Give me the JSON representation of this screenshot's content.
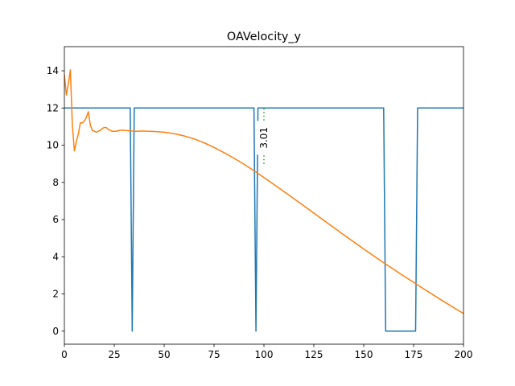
{
  "chart_data": {
    "type": "line",
    "title": "OAVelocity_y",
    "xlabel": "",
    "ylabel": "",
    "xlim": [
      0,
      200
    ],
    "ylim": [
      -0.7,
      15.3
    ],
    "xticks": [
      0,
      25,
      50,
      75,
      100,
      125,
      150,
      175,
      200
    ],
    "yticks": [
      0,
      2,
      4,
      6,
      8,
      10,
      12,
      14
    ],
    "grid": false,
    "legend": false,
    "series": [
      {
        "color": "#1f77b4",
        "x": [
          0,
          33,
          34,
          35,
          95,
          96,
          97,
          160,
          161,
          176,
          177,
          200
        ],
        "y": [
          12,
          12,
          0,
          12,
          12,
          0,
          12,
          12,
          0,
          0,
          12,
          12
        ]
      },
      {
        "color": "#ff7f0e",
        "x": [
          0,
          1,
          2,
          3,
          4,
          5,
          6,
          7,
          8,
          9,
          10,
          11,
          12,
          13,
          14,
          15,
          16,
          17,
          18,
          19,
          20,
          21,
          22,
          23,
          24,
          25,
          26,
          27,
          28,
          29,
          30,
          32,
          34,
          36,
          38,
          40,
          45,
          50,
          55,
          60,
          65,
          70,
          75,
          80,
          85,
          90,
          95,
          100,
          110,
          120,
          130,
          140,
          150,
          160,
          170,
          180,
          190,
          200
        ],
        "y": [
          13.8,
          12.7,
          13.3,
          14.05,
          11.1,
          9.7,
          10.2,
          10.6,
          11.2,
          11.2,
          11.3,
          11.5,
          11.8,
          11.1,
          10.8,
          10.75,
          10.7,
          10.75,
          10.8,
          10.9,
          10.95,
          10.95,
          10.85,
          10.8,
          10.75,
          10.75,
          10.75,
          10.78,
          10.8,
          10.8,
          10.8,
          10.78,
          10.76,
          10.75,
          10.76,
          10.76,
          10.74,
          10.7,
          10.62,
          10.5,
          10.34,
          10.13,
          9.88,
          9.6,
          9.3,
          8.98,
          8.63,
          8.26,
          7.51,
          6.74,
          5.96,
          5.18,
          4.42,
          3.68,
          2.97,
          2.28,
          1.6,
          0.95
        ]
      }
    ],
    "annotations": [
      {
        "x": 100,
        "y_from": 9.0,
        "y_to": 12.0,
        "y_text": 10.4,
        "text": "3.01",
        "color": "#2ca02c",
        "rotation": 90
      }
    ]
  }
}
